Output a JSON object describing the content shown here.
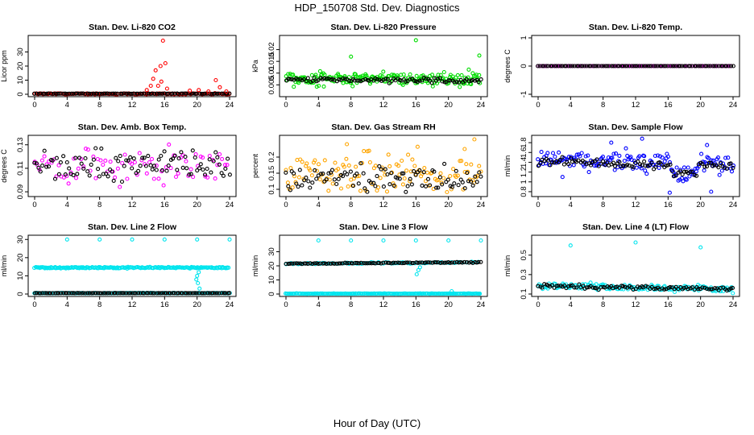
{
  "title": "HDP_150708  Std. Dev. Diagnostics",
  "xlabel": "Hour of Day (UTC)",
  "colors": {
    "red": "#ff0000",
    "green": "#00dd00",
    "magenta": "#ff00ff",
    "orange": "#ffa500",
    "blue": "#0000ff",
    "cyan": "#00e5ee",
    "black": "#000000"
  },
  "chart_data": [
    {
      "type": "scatter",
      "title": "Stan. Dev. Li-820 CO2",
      "ylabel": "Licor ppm",
      "xlim": [
        0,
        24
      ],
      "xticks": [
        0,
        4,
        8,
        12,
        16,
        20,
        24
      ],
      "ylim": [
        0,
        40
      ],
      "yticks": [
        0,
        10,
        20,
        30
      ],
      "color": "red",
      "series": [
        {
          "name": "all",
          "baseline": [
            0.3,
            0.3
          ],
          "jitter": 0.6,
          "density": 3,
          "color": "red"
        },
        {
          "name": "hourly",
          "baseline": [
            0.4,
            0.4
          ],
          "jitter": 0.2,
          "color": "black"
        }
      ],
      "spikes": [
        {
          "x": 15.8,
          "y": 38
        },
        {
          "x": 15.5,
          "y": 20
        },
        {
          "x": 16.1,
          "y": 22
        },
        {
          "x": 14.9,
          "y": 17
        },
        {
          "x": 14.6,
          "y": 11
        },
        {
          "x": 14.3,
          "y": 6
        },
        {
          "x": 15.2,
          "y": 6
        },
        {
          "x": 16.3,
          "y": 4
        },
        {
          "x": 15.6,
          "y": 9
        },
        {
          "x": 22.3,
          "y": 10
        },
        {
          "x": 22.8,
          "y": 5
        },
        {
          "x": 20.2,
          "y": 3
        },
        {
          "x": 21.4,
          "y": 2
        },
        {
          "x": 19.1,
          "y": 2.5
        },
        {
          "x": 23.6,
          "y": 2
        },
        {
          "x": 13.8,
          "y": 3
        }
      ]
    },
    {
      "type": "scatter",
      "title": "Stan. Dev. Li-820 Pressure",
      "ylabel": "kPa",
      "xlim": [
        0,
        24
      ],
      "xticks": [
        0,
        4,
        8,
        12,
        16,
        20,
        24
      ],
      "ylim": [
        0.001,
        0.025
      ],
      "yticks": [
        0.005,
        0.01,
        0.015,
        0.02
      ],
      "color": "green",
      "series": [
        {
          "name": "all",
          "baseline": [
            0.0078,
            0.0074
          ],
          "jitter": 0.004,
          "density": 5,
          "color": "green"
        },
        {
          "name": "hourly",
          "baseline": [
            0.0072,
            0.0068
          ],
          "jitter": 0.0015,
          "color": "black"
        }
      ],
      "spikes": [
        {
          "x": 8.0,
          "y": 0.017
        },
        {
          "x": 16.0,
          "y": 0.024
        },
        {
          "x": 23.8,
          "y": 0.0175
        },
        {
          "x": 22.5,
          "y": 0.0115
        },
        {
          "x": 4.2,
          "y": 0.0108
        }
      ]
    },
    {
      "type": "scatter",
      "title": "Stan. Dev. Li-820 Temp.",
      "ylabel": "degrees C",
      "xlim": [
        0,
        24
      ],
      "xticks": [
        0,
        4,
        8,
        12,
        16,
        20,
        24
      ],
      "ylim": [
        -1.0,
        1.0
      ],
      "yticks": [
        -1.0,
        0.0,
        1.0
      ],
      "color": "magenta",
      "series": [
        {
          "name": "all",
          "baseline": [
            0,
            0
          ],
          "jitter": 0,
          "density": 2,
          "color": "magenta"
        },
        {
          "name": "hourly",
          "baseline": [
            0,
            0
          ],
          "jitter": 0,
          "color": "black"
        }
      ],
      "spikes": []
    },
    {
      "type": "scatter",
      "title": "Stan. Dev. Amb. Box Temp.",
      "ylabel": "degrees C",
      "xlim": [
        0,
        24
      ],
      "xticks": [
        0,
        4,
        8,
        12,
        16,
        20,
        24
      ],
      "ylim": [
        0.088,
        0.136
      ],
      "yticks": [
        0.09,
        0.11,
        0.13
      ],
      "color": "magenta",
      "series": [
        {
          "name": "all",
          "baseline": [
            0.112,
            0.112
          ],
          "jitter": 0.022,
          "density": 2,
          "color": "magenta"
        },
        {
          "name": "hourly",
          "baseline": [
            0.112,
            0.112
          ],
          "jitter": 0.018,
          "color": "black"
        }
      ],
      "spikes": []
    },
    {
      "type": "scatter",
      "title": "Stan. Dev. Gas Stream RH",
      "ylabel": "percent",
      "xlim": [
        0,
        24
      ],
      "xticks": [
        0,
        4,
        8,
        12,
        16,
        20,
        24
      ],
      "ylim": [
        0.085,
        0.26
      ],
      "yticks": [
        0.1,
        0.15,
        0.2
      ],
      "color": "orange",
      "series": [
        {
          "name": "all",
          "baseline": [
            0.145,
            0.14
          ],
          "jitter": 0.1,
          "density": 3,
          "color": "orange"
        },
        {
          "name": "hourly",
          "baseline": [
            0.135,
            0.13
          ],
          "jitter": 0.06,
          "color": "black"
        }
      ],
      "spikes": [
        {
          "x": 23.2,
          "y": 0.255
        },
        {
          "x": 7.5,
          "y": 0.24
        },
        {
          "x": 16.2,
          "y": 0.232
        },
        {
          "x": 22.0,
          "y": 0.225
        }
      ]
    },
    {
      "type": "scatter",
      "title": "Stan. Dev. Sample Flow",
      "ylabel": "ml/min",
      "xlim": [
        0,
        24
      ],
      "xticks": [
        0,
        4,
        8,
        12,
        16,
        20,
        24
      ],
      "ylim": [
        0.75,
        1.9
      ],
      "yticks": [
        0.8,
        1.0,
        1.2,
        1.4,
        1.6,
        1.8
      ],
      "color": "blue",
      "series": [
        {
          "name": "all",
          "baseline": [
            1.48,
            1.35
          ],
          "jitter": 0.3,
          "density": 4,
          "color": "blue"
        },
        {
          "name": "hourly",
          "baseline": [
            1.42,
            1.32
          ],
          "jitter": 0.12,
          "color": "black"
        }
      ],
      "spikes": [
        {
          "x": 12.8,
          "y": 1.88
        },
        {
          "x": 16.2,
          "y": 0.78
        },
        {
          "x": 21.3,
          "y": 0.8
        },
        {
          "x": 20.8,
          "y": 1.75
        },
        {
          "x": 9.0,
          "y": 1.8
        },
        {
          "x": 3.0,
          "y": 1.1
        }
      ],
      "dip": {
        "from": 16.5,
        "to": 19.5,
        "level": 1.15
      }
    },
    {
      "type": "scatter",
      "title": "Stan. Dev. Line 2 Flow",
      "ylabel": "ml/min",
      "xlim": [
        0,
        24
      ],
      "xticks": [
        0,
        4,
        8,
        12,
        16,
        20,
        24
      ],
      "ylim": [
        0,
        31
      ],
      "yticks": [
        0,
        10,
        20,
        30
      ],
      "color": "cyan",
      "series": [
        {
          "name": "upper",
          "baseline": [
            14.5,
            14.5
          ],
          "jitter": 0.6,
          "density": 5,
          "color": "cyan"
        },
        {
          "name": "lower",
          "baseline": [
            0.5,
            0.5
          ],
          "jitter": 0.2,
          "density": 3,
          "color": "cyan"
        },
        {
          "name": "hourly",
          "baseline": [
            0.5,
            0.5
          ],
          "jitter": 0.1,
          "color": "black"
        }
      ],
      "spikes": [
        {
          "x": 4.0,
          "y": 30
        },
        {
          "x": 8.0,
          "y": 30
        },
        {
          "x": 12.0,
          "y": 30
        },
        {
          "x": 16.0,
          "y": 30
        },
        {
          "x": 20.0,
          "y": 30
        },
        {
          "x": 24.0,
          "y": 30
        },
        {
          "x": 20.0,
          "y": 10
        },
        {
          "x": 20.1,
          "y": 6
        },
        {
          "x": 20.3,
          "y": 3
        },
        {
          "x": 19.9,
          "y": 8
        },
        {
          "x": 20.2,
          "y": 12
        }
      ]
    },
    {
      "type": "scatter",
      "title": "Stan. Dev. Line 3 Flow",
      "ylabel": "ml/min",
      "xlim": [
        0,
        24
      ],
      "xticks": [
        0,
        4,
        8,
        12,
        16,
        20,
        24
      ],
      "ylim": [
        0,
        40
      ],
      "yticks": [
        0,
        10,
        20,
        30
      ],
      "color": "cyan",
      "series": [
        {
          "name": "upper",
          "baseline": [
            21.5,
            22.5
          ],
          "jitter": 0.8,
          "density": 2,
          "color": "cyan"
        },
        {
          "name": "upper-hourly",
          "baseline": [
            21.5,
            22.5
          ],
          "jitter": 0.5,
          "color": "black"
        },
        {
          "name": "lower",
          "baseline": [
            0.3,
            0.3
          ],
          "jitter": 0.2,
          "density": 5,
          "color": "cyan"
        }
      ],
      "spikes": [
        {
          "x": 4.0,
          "y": 38
        },
        {
          "x": 8.0,
          "y": 38
        },
        {
          "x": 12.0,
          "y": 38
        },
        {
          "x": 16.0,
          "y": 38
        },
        {
          "x": 20.0,
          "y": 38
        },
        {
          "x": 24.0,
          "y": 38
        },
        {
          "x": 16.3,
          "y": 17
        },
        {
          "x": 16.1,
          "y": 14
        },
        {
          "x": 16.5,
          "y": 19
        },
        {
          "x": 20.4,
          "y": 2
        }
      ]
    },
    {
      "type": "scatter",
      "title": "Stan. Dev. Line 4 (LT) Flow",
      "ylabel": "ml/min",
      "xlim": [
        0,
        24
      ],
      "xticks": [
        0,
        4,
        8,
        12,
        16,
        20,
        24
      ],
      "ylim": [
        0.1,
        0.68
      ],
      "yticks": [
        0.1,
        0.3,
        0.5
      ],
      "color": "cyan",
      "series": [
        {
          "name": "all",
          "baseline": [
            0.19,
            0.15
          ],
          "jitter": 0.05,
          "density": 4,
          "color": "cyan"
        },
        {
          "name": "hourly",
          "baseline": [
            0.18,
            0.15
          ],
          "jitter": 0.03,
          "color": "black"
        }
      ],
      "spikes": [
        {
          "x": 4.0,
          "y": 0.6
        },
        {
          "x": 12.0,
          "y": 0.63
        },
        {
          "x": 20.0,
          "y": 0.58
        }
      ]
    }
  ]
}
